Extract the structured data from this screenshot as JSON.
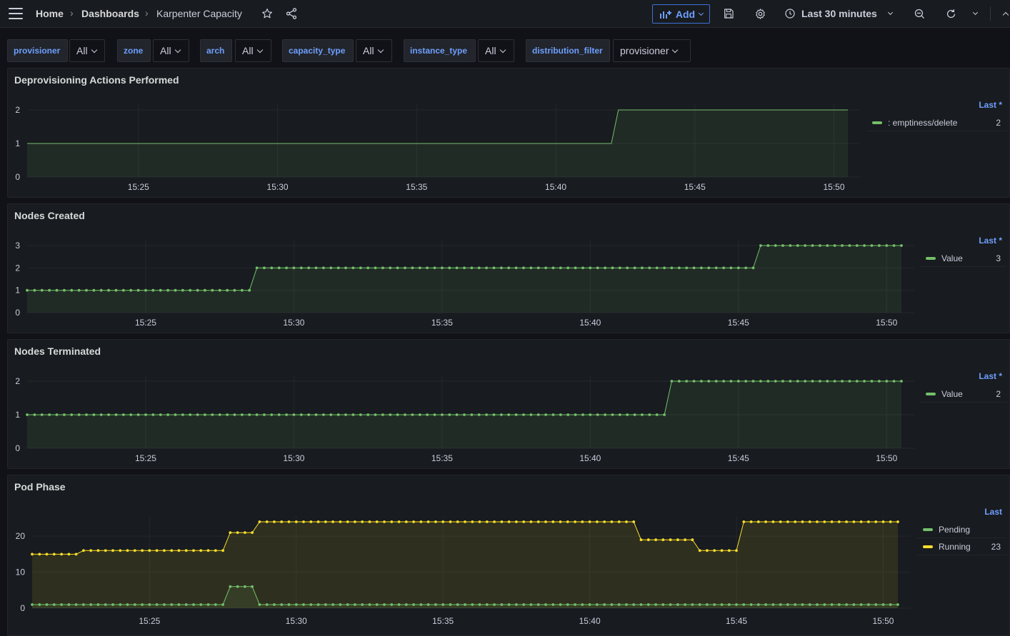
{
  "topbar": {
    "breadcrumb": [
      "Home",
      "Dashboards",
      "Karpenter Capacity"
    ],
    "add_label": "Add",
    "time_range": "Last 30 minutes",
    "icons": [
      "menu-icon",
      "star-icon",
      "share-icon",
      "add-panel-icon",
      "save-icon",
      "gear-icon",
      "clock-icon",
      "chevron-down-icon",
      "zoom-out-icon",
      "refresh-icon",
      "chevron-down-icon",
      "collapse-icon"
    ]
  },
  "variables": [
    {
      "label": "provisioner",
      "value": "All"
    },
    {
      "label": "zone",
      "value": "All"
    },
    {
      "label": "arch",
      "value": "All"
    },
    {
      "label": "capacity_type",
      "value": "All"
    },
    {
      "label": "instance_type",
      "value": "All"
    },
    {
      "label": "distribution_filter",
      "value": "provisioner"
    }
  ],
  "colors": {
    "green": "#73bf69",
    "yellow": "#fade2a",
    "accent": "#6e9fff"
  },
  "panels": [
    {
      "title": "Deprovisioning Actions Performed",
      "legend_header": "Last *",
      "legend": [
        {
          "name": ": emptiness/delete",
          "value": "2",
          "color": "#73bf69"
        }
      ]
    },
    {
      "title": "Nodes Created",
      "legend_header": "Last *",
      "legend": [
        {
          "name": "Value",
          "value": "3",
          "color": "#73bf69"
        }
      ]
    },
    {
      "title": "Nodes Terminated",
      "legend_header": "Last *",
      "legend": [
        {
          "name": "Value",
          "value": "2",
          "color": "#73bf69"
        }
      ]
    },
    {
      "title": "Pod Phase",
      "legend_header": "Last",
      "legend": [
        {
          "name": "Pending",
          "value": "",
          "color": "#73bf69"
        },
        {
          "name": "Running",
          "value": "23",
          "color": "#fade2a"
        }
      ]
    }
  ],
  "chart_data": [
    {
      "type": "area",
      "title": "Deprovisioning Actions Performed",
      "xticks": [
        "15:25",
        "15:30",
        "15:35",
        "15:40",
        "15:45",
        "15:50"
      ],
      "yticks": [
        "0",
        "1",
        "2"
      ],
      "xlim": [
        "15:21",
        "15:50:30"
      ],
      "ylim": [
        0,
        2
      ],
      "points": false,
      "series": [
        {
          "name": ": emptiness/delete",
          "color": "#73bf69",
          "x": [
            "15:21",
            "15:42",
            "15:42:15",
            "15:50:30"
          ],
          "y": [
            1,
            1,
            2,
            2
          ]
        }
      ]
    },
    {
      "type": "area",
      "title": "Nodes Created",
      "xticks": [
        "15:25",
        "15:30",
        "15:35",
        "15:40",
        "15:45",
        "15:50"
      ],
      "yticks": [
        "0",
        "1",
        "2",
        "3"
      ],
      "xlim": [
        "15:21",
        "15:50:30"
      ],
      "ylim": [
        0,
        3
      ],
      "points": true,
      "series": [
        {
          "name": "Value",
          "color": "#73bf69",
          "x": [
            "15:21",
            "15:28:30",
            "15:28:45",
            "15:45:30",
            "15:45:45",
            "15:50:30"
          ],
          "y": [
            1,
            1,
            2,
            2,
            3,
            3
          ]
        }
      ]
    },
    {
      "type": "area",
      "title": "Nodes Terminated",
      "xticks": [
        "15:25",
        "15:30",
        "15:35",
        "15:40",
        "15:45",
        "15:50"
      ],
      "yticks": [
        "0",
        "1",
        "2"
      ],
      "xlim": [
        "15:21",
        "15:50:30"
      ],
      "ylim": [
        0,
        2
      ],
      "points": true,
      "series": [
        {
          "name": "Value",
          "color": "#73bf69",
          "x": [
            "15:21",
            "15:42:30",
            "15:42:45",
            "15:50:30"
          ],
          "y": [
            1,
            1,
            2,
            2
          ]
        }
      ]
    },
    {
      "type": "area",
      "title": "Pod Phase",
      "xticks": [
        "15:25",
        "15:30",
        "15:35",
        "15:40",
        "15:45",
        "15:50"
      ],
      "yticks": [
        "0",
        "10",
        "20"
      ],
      "xlim": [
        "15:21",
        "15:50:30"
      ],
      "ylim": [
        0,
        24
      ],
      "points": true,
      "series": [
        {
          "name": "Pending",
          "color": "#73bf69",
          "x": [
            "15:21",
            "15:27:30",
            "15:27:45",
            "15:28:30",
            "15:28:45",
            "15:50:30"
          ],
          "y": [
            1,
            1,
            6,
            6,
            1,
            1
          ]
        },
        {
          "name": "Running",
          "color": "#fade2a",
          "x": [
            "15:21",
            "15:22:30",
            "15:22:45",
            "15:27:30",
            "15:27:45",
            "15:28:30",
            "15:28:45",
            "15:41:30",
            "15:41:45",
            "15:43:30",
            "15:43:45",
            "15:45",
            "15:45:15",
            "15:50:30"
          ],
          "y": [
            15,
            15,
            16,
            16,
            21,
            21,
            24,
            24,
            19,
            19,
            16,
            16,
            24,
            24
          ]
        }
      ]
    }
  ]
}
